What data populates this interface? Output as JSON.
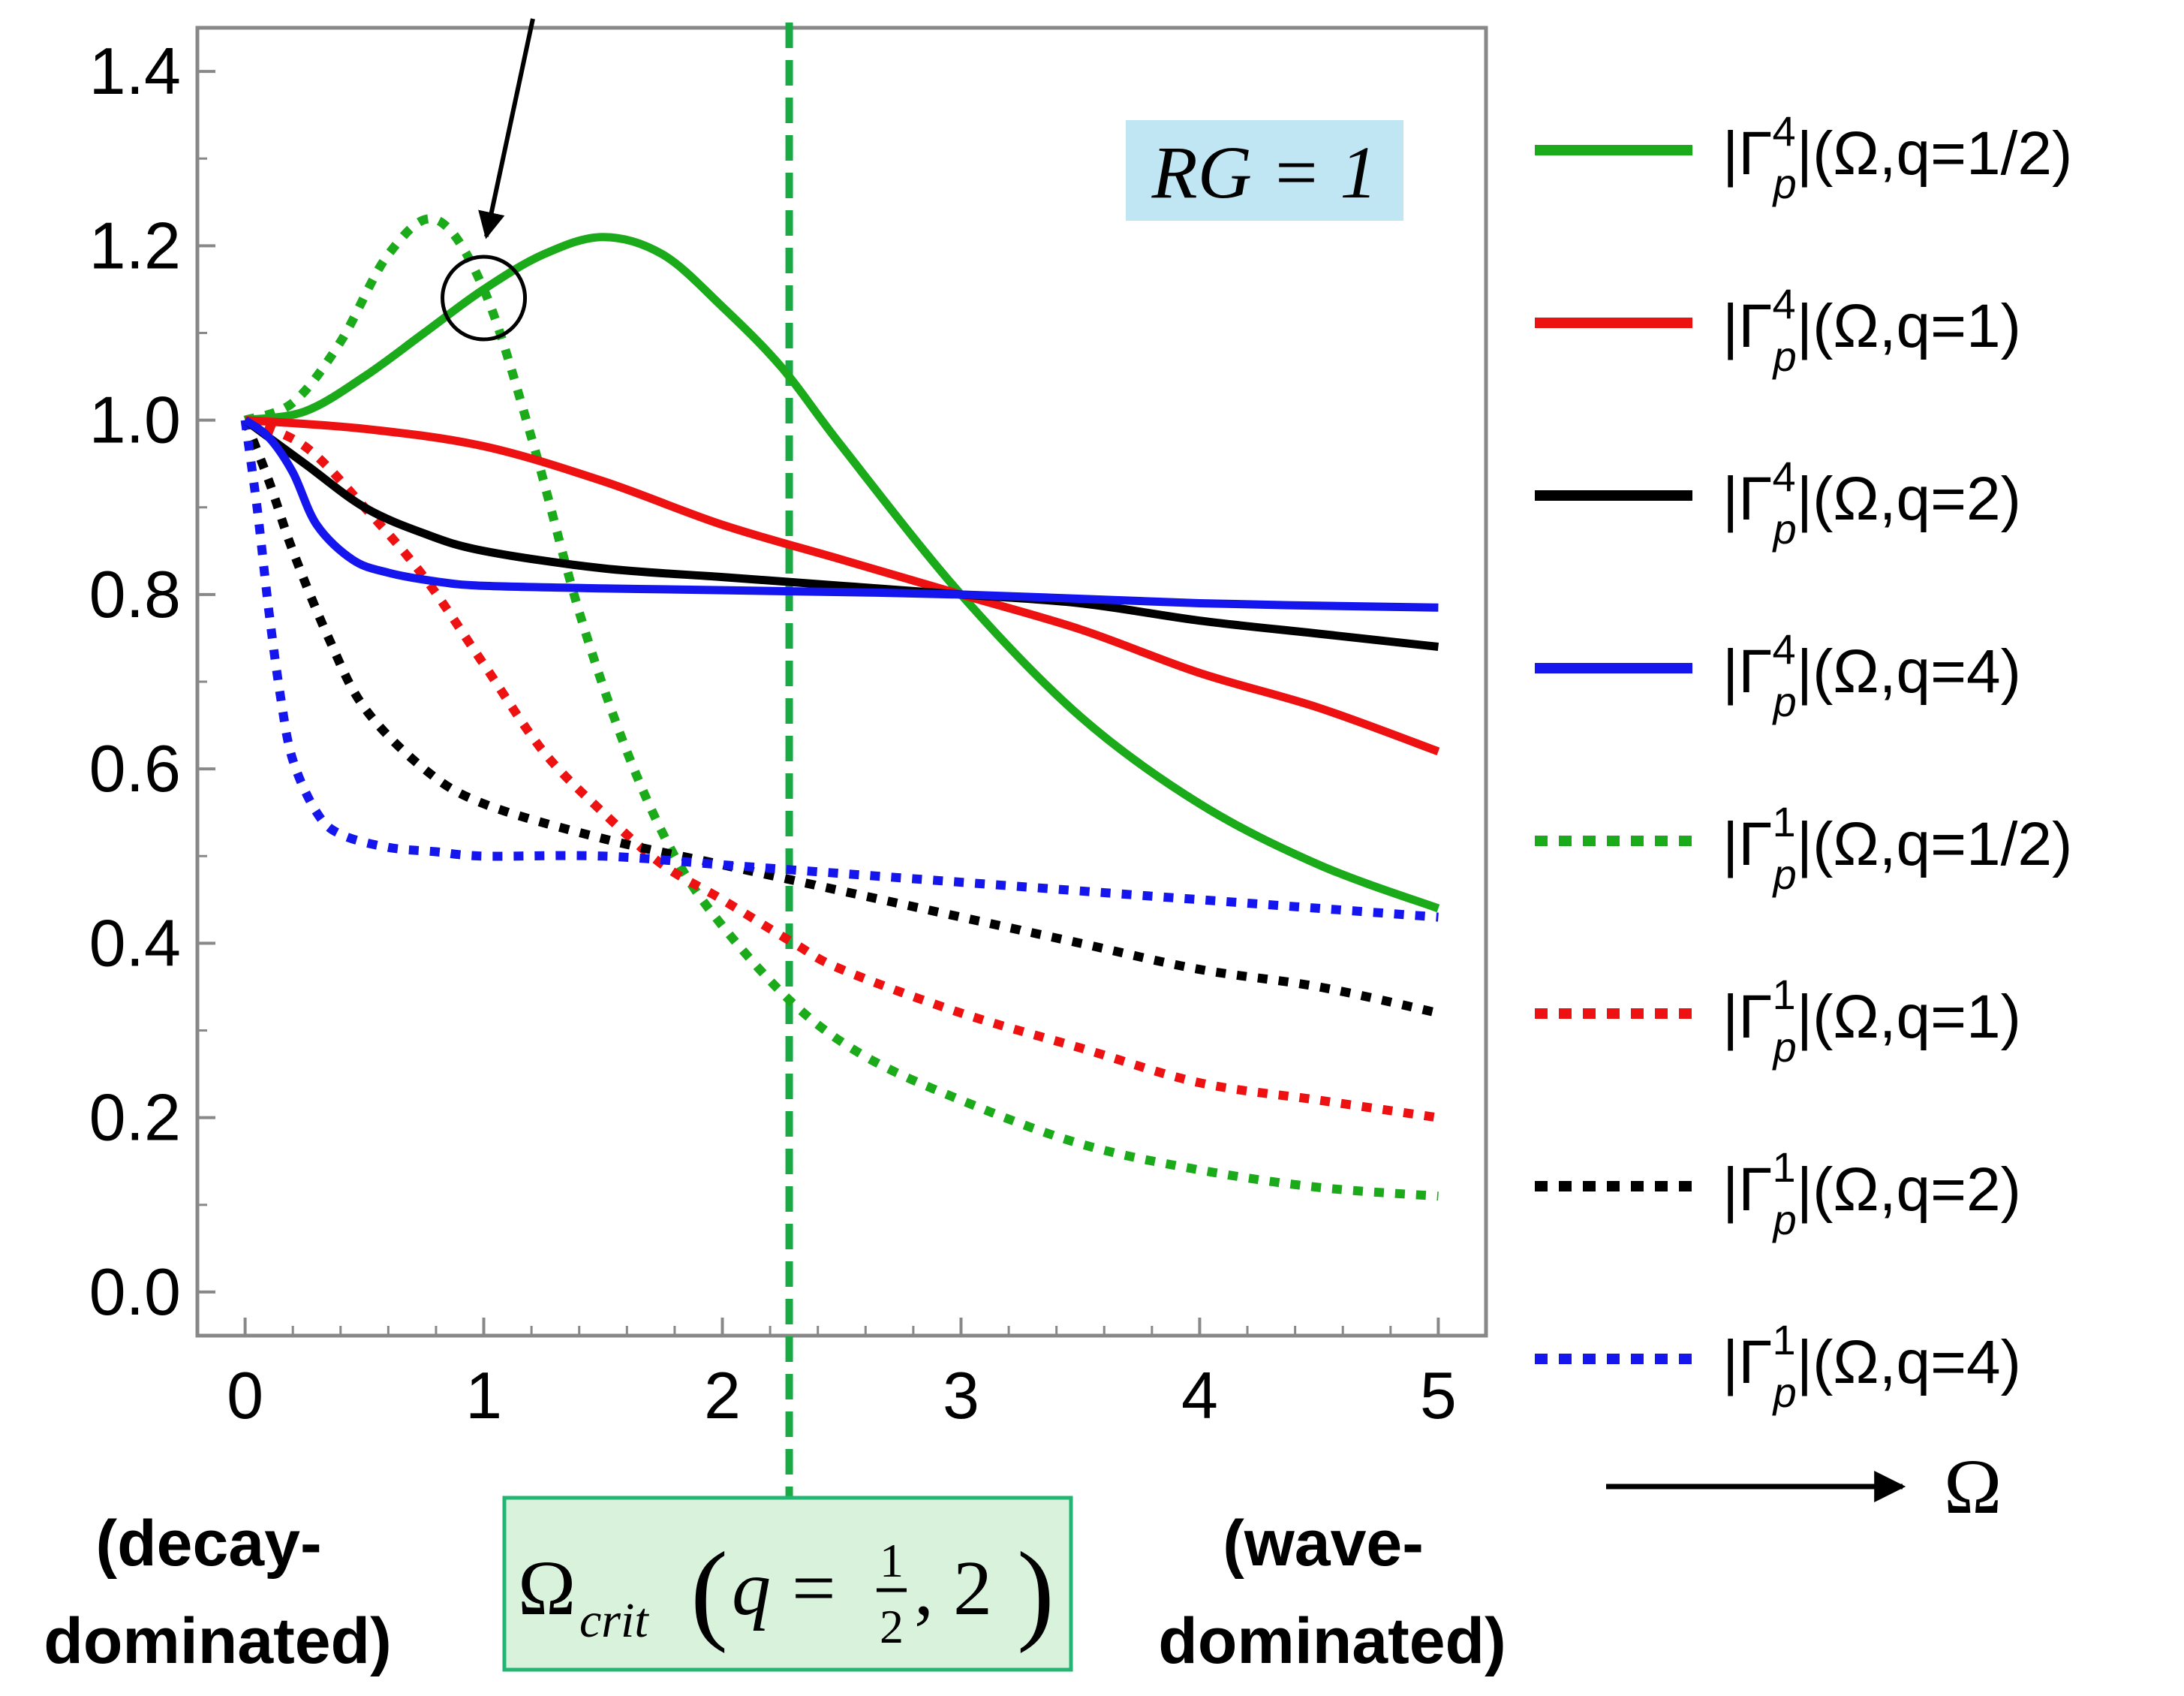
{
  "chart_data": {
    "type": "line",
    "title": "",
    "xlabel": "Ω",
    "ylabel": "",
    "xlim": [
      -0.2,
      5.2
    ],
    "ylim": [
      -0.05,
      1.45
    ],
    "grid": false,
    "x_ticks": [
      "0",
      "1",
      "2",
      "3",
      "4",
      "5"
    ],
    "y_ticks": [
      "0.0",
      "0.2",
      "0.4",
      "0.6",
      "0.8",
      "1.0",
      "1.2",
      "1.4"
    ],
    "x_tick_values": [
      0,
      1,
      2,
      3,
      4,
      5
    ],
    "y_tick_values": [
      0.0,
      0.2,
      0.4,
      0.6,
      0.8,
      1.0,
      1.2,
      1.4
    ],
    "legend_placement": "right",
    "series": [
      {
        "name": "|Γp4|(Ω,q=1/2)",
        "gamma": "4",
        "q": "1/2",
        "color": "#1aaa1a",
        "style": "solid",
        "x": [
          0,
          0.25,
          0.5,
          0.75,
          1.0,
          1.25,
          1.5,
          1.75,
          2.0,
          2.25,
          2.5,
          3.0,
          3.5,
          4.0,
          4.5,
          5.0
        ],
        "values": [
          1.0,
          1.01,
          1.05,
          1.1,
          1.15,
          1.19,
          1.21,
          1.19,
          1.13,
          1.06,
          0.97,
          0.8,
          0.66,
          0.56,
          0.49,
          0.44
        ]
      },
      {
        "name": "|Γp4|(Ω,q=1)",
        "gamma": "4",
        "q": "1",
        "color": "#ee1111",
        "style": "solid",
        "x": [
          0,
          0.5,
          1.0,
          1.5,
          2.0,
          2.5,
          3.0,
          3.5,
          4.0,
          4.5,
          5.0
        ],
        "values": [
          1.0,
          0.99,
          0.97,
          0.93,
          0.88,
          0.84,
          0.8,
          0.76,
          0.71,
          0.67,
          0.62
        ]
      },
      {
        "name": "|Γp4|(Ω,q=2)",
        "gamma": "4",
        "q": "2",
        "color": "#000000",
        "style": "solid",
        "x": [
          0,
          0.25,
          0.5,
          0.75,
          1.0,
          1.5,
          2.0,
          2.5,
          3.0,
          3.5,
          4.0,
          4.5,
          5.0
        ],
        "values": [
          1.0,
          0.95,
          0.9,
          0.87,
          0.85,
          0.83,
          0.82,
          0.81,
          0.8,
          0.79,
          0.77,
          0.755,
          0.74
        ]
      },
      {
        "name": "|Γp4|(Ω,q=4)",
        "gamma": "4",
        "q": "4",
        "color": "#1515ee",
        "style": "solid",
        "x": [
          0,
          0.1,
          0.2,
          0.3,
          0.45,
          0.6,
          0.8,
          1.0,
          1.5,
          2.0,
          3.0,
          4.0,
          5.0
        ],
        "values": [
          1.0,
          0.98,
          0.94,
          0.88,
          0.84,
          0.825,
          0.815,
          0.81,
          0.807,
          0.805,
          0.8,
          0.79,
          0.785
        ]
      },
      {
        "name": "|Γp1|(Ω,q=1/2)",
        "gamma": "1",
        "q": "1/2",
        "color": "#1aaa1a",
        "style": "dotted",
        "x": [
          0,
          0.2,
          0.4,
          0.6,
          0.8,
          1.0,
          1.2,
          1.4,
          1.6,
          1.8,
          2.0,
          2.3,
          2.6,
          3.0,
          3.5,
          4.0,
          4.5,
          5.0
        ],
        "values": [
          1.0,
          1.02,
          1.09,
          1.19,
          1.23,
          1.15,
          0.98,
          0.78,
          0.62,
          0.5,
          0.42,
          0.33,
          0.27,
          0.22,
          0.17,
          0.14,
          0.12,
          0.11
        ]
      },
      {
        "name": "|Γp1|(Ω,q=1)",
        "gamma": "1",
        "q": "1",
        "color": "#ee1111",
        "style": "dotted",
        "x": [
          0,
          0.25,
          0.5,
          0.75,
          1.0,
          1.25,
          1.5,
          1.75,
          2.0,
          2.3,
          2.5,
          3.0,
          3.5,
          4.0,
          4.5,
          5.0
        ],
        "values": [
          1.0,
          0.97,
          0.9,
          0.82,
          0.72,
          0.62,
          0.55,
          0.49,
          0.45,
          0.4,
          0.37,
          0.32,
          0.28,
          0.24,
          0.22,
          0.2
        ]
      },
      {
        "name": "|Γp1|(Ω,q=2)",
        "gamma": "1",
        "q": "2",
        "color": "#000000",
        "style": "dotted",
        "x": [
          0,
          0.1,
          0.2,
          0.35,
          0.5,
          0.75,
          1.0,
          1.5,
          2.0,
          2.5,
          3.0,
          3.5,
          4.0,
          4.5,
          5.0
        ],
        "values": [
          1.0,
          0.93,
          0.85,
          0.75,
          0.67,
          0.6,
          0.56,
          0.52,
          0.49,
          0.46,
          0.43,
          0.4,
          0.37,
          0.35,
          0.32
        ]
      },
      {
        "name": "|Γp1|(Ω,q=4)",
        "gamma": "1",
        "q": "4",
        "color": "#1515ee",
        "style": "dotted",
        "x": [
          0,
          0.05,
          0.1,
          0.15,
          0.2,
          0.3,
          0.4,
          0.6,
          0.8,
          1.0,
          1.5,
          2.0,
          2.5,
          3.0,
          3.5,
          4.0,
          4.5,
          5.0
        ],
        "values": [
          1.0,
          0.9,
          0.78,
          0.68,
          0.61,
          0.55,
          0.525,
          0.51,
          0.505,
          0.5,
          0.5,
          0.49,
          0.48,
          0.47,
          0.46,
          0.45,
          0.44,
          0.43
        ]
      }
    ],
    "annotations": {
      "rg_box": "RG = 1",
      "crit_x": 2.28,
      "crit_label": {
        "main": "Ω",
        "sub": "crit",
        "q": "q",
        "eq": "=",
        "num": "1",
        "den": "2",
        "rest": ", 2"
      },
      "circle_at": [
        1.0,
        1.14
      ],
      "left_note": "(decay-\ndominated)",
      "right_note": "(wave-\ndominated)",
      "omega_arrow_label": "Ω"
    }
  }
}
